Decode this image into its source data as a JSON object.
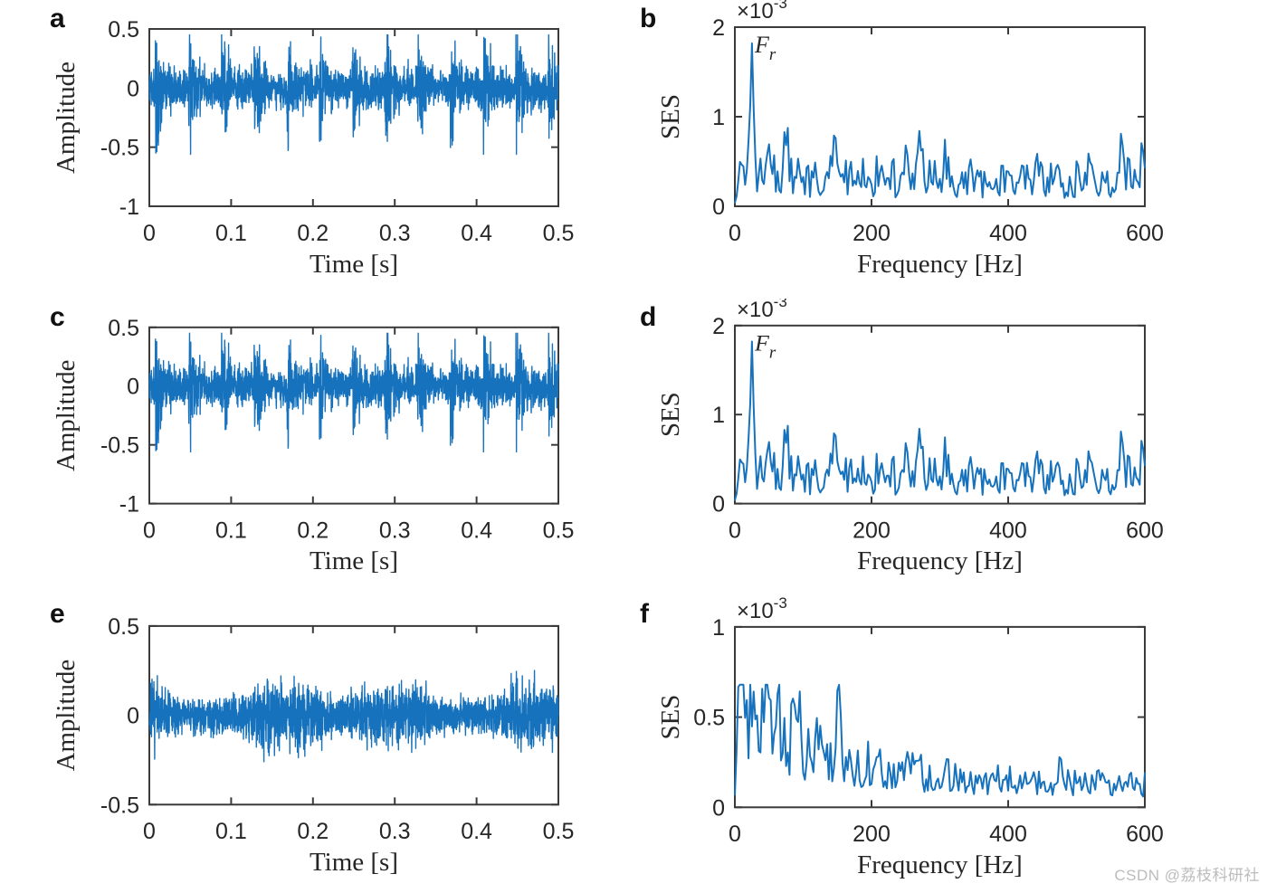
{
  "colors": {
    "line": "#1772bd",
    "axis": "#3a3a3a",
    "text": "#262626",
    "panel_label": "#111111",
    "watermark": "#bcbcbc"
  },
  "watermark": {
    "text": "CSDN @荔枝科研社"
  },
  "chart_data": [
    {
      "panel": "a",
      "type": "line",
      "kind": "time_impulsive",
      "xlabel": "Time [s]",
      "ylabel": "Amplitude",
      "xlim": [
        0,
        0.5
      ],
      "ylim": [
        -1,
        0.5
      ],
      "xticks": [
        0,
        0.1,
        0.2,
        0.3,
        0.4,
        0.5
      ],
      "xtick_labels": [
        "0",
        "0.1",
        "0.2",
        "0.3",
        "0.4",
        "0.5"
      ],
      "yticks": [
        0.5,
        0,
        -0.5,
        -1
      ],
      "ytick_labels": [
        "0.5",
        "0",
        "-0.5",
        "-1"
      ],
      "grid": false,
      "legend": null,
      "signal": {
        "seed": 11,
        "n": 2400,
        "noise_sigma": 0.075,
        "impulse_period_s": 0.04,
        "impulse_phase_s": 0.008,
        "impulse_decay": 130,
        "burst_amp": 0.3,
        "start_spike_min": -0.55,
        "start_spike_max": 0.4,
        "clip": [
          -0.56,
          0.45
        ]
      }
    },
    {
      "panel": "b",
      "type": "line",
      "kind": "ses_peaks",
      "xlabel": "Frequency [Hz]",
      "ylabel": "SES",
      "y_multiplier": {
        "base": "×10",
        "exp": "-3"
      },
      "annotation": {
        "main": "F",
        "sub": "r",
        "at_hz": 25
      },
      "xlim": [
        0,
        600
      ],
      "ylim": [
        0,
        2
      ],
      "xticks": [
        0,
        200,
        400,
        600
      ],
      "xtick_labels": [
        "0",
        "200",
        "400",
        "600"
      ],
      "yticks": [
        0,
        1,
        2
      ],
      "ytick_labels": [
        "0",
        "1",
        "2"
      ],
      "grid": false,
      "legend": null,
      "signal": {
        "seed": 23,
        "n": 241,
        "floor_base": 0.1,
        "floor_rand": 0.27,
        "dip_center": 400,
        "dip_width": 100,
        "dip_depth": 0.15,
        "main_peak": {
          "hz": 25,
          "amp": 1.52,
          "width": 3.5
        },
        "bumps": [
          {
            "hz": 10,
            "amp": 0.32,
            "width": 4
          },
          {
            "hz": 50,
            "amp": 0.36,
            "width": 5
          },
          {
            "hz": 75,
            "amp": 0.44,
            "width": 5
          },
          {
            "hz": 118,
            "amp": 0.22,
            "width": 4
          },
          {
            "hz": 148,
            "amp": 0.4,
            "width": 5
          },
          {
            "hz": 175,
            "amp": 0.18,
            "width": 4
          },
          {
            "hz": 215,
            "amp": 0.28,
            "width": 5
          },
          {
            "hz": 248,
            "amp": 0.2,
            "width": 4
          },
          {
            "hz": 272,
            "amp": 0.38,
            "width": 5
          },
          {
            "hz": 308,
            "amp": 0.25,
            "width": 4
          },
          {
            "hz": 345,
            "amp": 0.14,
            "width": 4
          },
          {
            "hz": 402,
            "amp": 0.2,
            "width": 4
          },
          {
            "hz": 442,
            "amp": 0.16,
            "width": 4
          },
          {
            "hz": 472,
            "amp": 0.24,
            "width": 4
          },
          {
            "hz": 522,
            "amp": 0.27,
            "width": 4
          },
          {
            "hz": 566,
            "amp": 0.3,
            "width": 5
          },
          {
            "hz": 596,
            "amp": 0.22,
            "width": 4
          }
        ],
        "clip": [
          0.02,
          1.82
        ]
      }
    },
    {
      "panel": "c",
      "type": "line",
      "kind": "time_impulsive",
      "xlabel": "Time [s]",
      "ylabel": "Amplitude",
      "xlim": [
        0,
        0.5
      ],
      "ylim": [
        -1,
        0.5
      ],
      "xticks": [
        0,
        0.1,
        0.2,
        0.3,
        0.4,
        0.5
      ],
      "xtick_labels": [
        "0",
        "0.1",
        "0.2",
        "0.3",
        "0.4",
        "0.5"
      ],
      "yticks": [
        0.5,
        0,
        -0.5,
        -1
      ],
      "ytick_labels": [
        "0.5",
        "0",
        "-0.5",
        "-1"
      ],
      "grid": false,
      "legend": null,
      "signal": {
        "seed": 11,
        "n": 2400,
        "noise_sigma": 0.075,
        "impulse_period_s": 0.04,
        "impulse_phase_s": 0.008,
        "impulse_decay": 130,
        "burst_amp": 0.3,
        "start_spike_min": -0.55,
        "start_spike_max": 0.4,
        "clip": [
          -0.56,
          0.45
        ]
      }
    },
    {
      "panel": "d",
      "type": "line",
      "kind": "ses_peaks",
      "xlabel": "Frequency [Hz]",
      "ylabel": "SES",
      "y_multiplier": {
        "base": "×10",
        "exp": "-3"
      },
      "annotation": {
        "main": "F",
        "sub": "r",
        "at_hz": 25
      },
      "xlim": [
        0,
        600
      ],
      "ylim": [
        0,
        2
      ],
      "xticks": [
        0,
        200,
        400,
        600
      ],
      "xtick_labels": [
        "0",
        "200",
        "400",
        "600"
      ],
      "yticks": [
        0,
        1,
        2
      ],
      "ytick_labels": [
        "0",
        "1",
        "2"
      ],
      "grid": false,
      "legend": null,
      "signal": {
        "seed": 23,
        "n": 241,
        "floor_base": 0.1,
        "floor_rand": 0.27,
        "dip_center": 400,
        "dip_width": 100,
        "dip_depth": 0.15,
        "main_peak": {
          "hz": 25,
          "amp": 1.52,
          "width": 3.5
        },
        "bumps": [
          {
            "hz": 10,
            "amp": 0.32,
            "width": 4
          },
          {
            "hz": 50,
            "amp": 0.36,
            "width": 5
          },
          {
            "hz": 75,
            "amp": 0.44,
            "width": 5
          },
          {
            "hz": 118,
            "amp": 0.22,
            "width": 4
          },
          {
            "hz": 148,
            "amp": 0.4,
            "width": 5
          },
          {
            "hz": 175,
            "amp": 0.18,
            "width": 4
          },
          {
            "hz": 215,
            "amp": 0.28,
            "width": 5
          },
          {
            "hz": 248,
            "amp": 0.2,
            "width": 4
          },
          {
            "hz": 272,
            "amp": 0.38,
            "width": 5
          },
          {
            "hz": 308,
            "amp": 0.25,
            "width": 4
          },
          {
            "hz": 345,
            "amp": 0.14,
            "width": 4
          },
          {
            "hz": 402,
            "amp": 0.2,
            "width": 4
          },
          {
            "hz": 442,
            "amp": 0.16,
            "width": 4
          },
          {
            "hz": 472,
            "amp": 0.24,
            "width": 4
          },
          {
            "hz": 522,
            "amp": 0.27,
            "width": 4
          },
          {
            "hz": 566,
            "amp": 0.3,
            "width": 5
          },
          {
            "hz": 596,
            "amp": 0.22,
            "width": 4
          }
        ],
        "clip": [
          0.02,
          1.82
        ]
      }
    },
    {
      "panel": "e",
      "type": "line",
      "kind": "time_dense",
      "xlabel": "Time [s]",
      "ylabel": "Amplitude",
      "xlim": [
        0,
        0.5
      ],
      "ylim": [
        -0.5,
        0.5
      ],
      "xticks": [
        0,
        0.1,
        0.2,
        0.3,
        0.4,
        0.5
      ],
      "xtick_labels": [
        "0",
        "0.1",
        "0.2",
        "0.3",
        "0.4",
        "0.5"
      ],
      "yticks": [
        0.5,
        0,
        -0.5
      ],
      "ytick_labels": [
        "0.5",
        "0",
        "-0.5"
      ],
      "grid": false,
      "legend": null,
      "signal": {
        "seed": 7,
        "n": 2600,
        "noise_sigma": 0.045,
        "envelope": [
          {
            "freq": 6.3,
            "amp": 0.4,
            "phase": 2.0
          },
          {
            "freq": 15.7,
            "amp": 0.25,
            "phase": 0.7
          },
          {
            "freq": 2.9,
            "amp": 0.25,
            "phase": 4.1
          }
        ],
        "clip": [
          -0.26,
          0.26
        ]
      }
    },
    {
      "panel": "f",
      "type": "line",
      "kind": "ses_decay",
      "xlabel": "Frequency [Hz]",
      "ylabel": "SES",
      "y_multiplier": {
        "base": "×10",
        "exp": "-3"
      },
      "annotation": null,
      "xlim": [
        0,
        600
      ],
      "ylim": [
        0,
        1
      ],
      "xticks": [
        0,
        200,
        400,
        600
      ],
      "xtick_labels": [
        "0",
        "200",
        "400",
        "600"
      ],
      "yticks": [
        0,
        0.5,
        1
      ],
      "ytick_labels": [
        "0",
        "0.5",
        "1"
      ],
      "grid": false,
      "legend": null,
      "signal": {
        "seed": 5,
        "n": 241,
        "base_const": 0.055,
        "base_rand": 0.075,
        "decay_amp": 0.16,
        "decay_rand": 0.3,
        "decay_hz": 160,
        "bumps": [
          {
            "hz": 12,
            "amp": 0.3,
            "width": 5
          },
          {
            "hz": 28,
            "amp": 0.28,
            "width": 5
          },
          {
            "hz": 45,
            "amp": 0.33,
            "width": 6
          },
          {
            "hz": 62,
            "amp": 0.26,
            "width": 5
          },
          {
            "hz": 92,
            "amp": 0.2,
            "width": 6
          },
          {
            "hz": 125,
            "amp": 0.22,
            "width": 6
          },
          {
            "hz": 152,
            "amp": 0.26,
            "width": 5
          },
          {
            "hz": 210,
            "amp": 0.13,
            "width": 5
          },
          {
            "hz": 475,
            "amp": 0.07,
            "width": 6
          },
          {
            "hz": 540,
            "amp": 0.08,
            "width": 5
          }
        ],
        "clip": [
          0.01,
          0.68
        ]
      }
    }
  ]
}
